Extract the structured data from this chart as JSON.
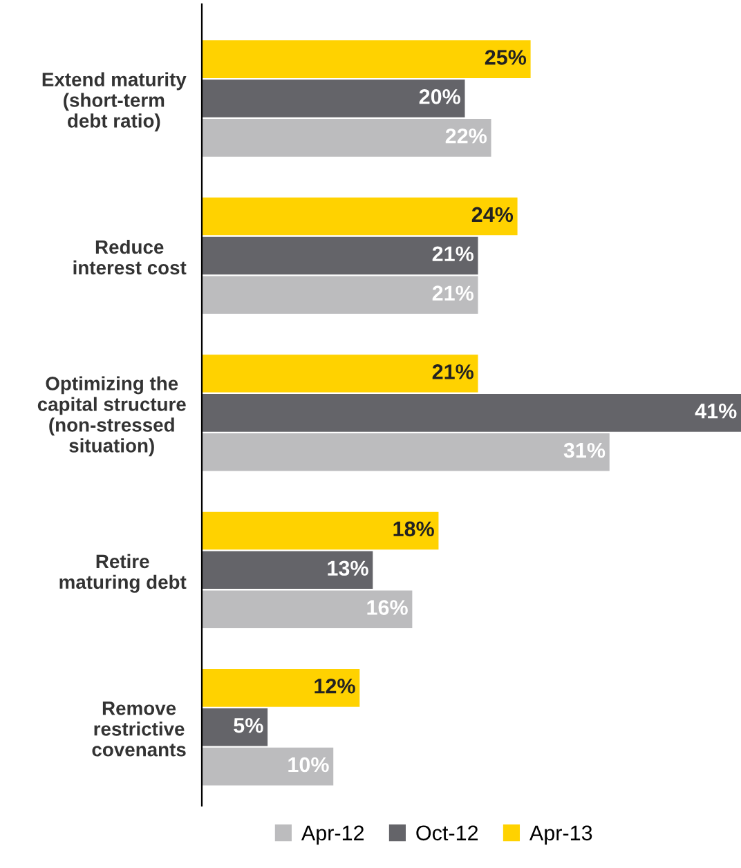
{
  "chart_data": {
    "type": "bar",
    "orientation": "horizontal",
    "categories": [
      "Extend maturity\n(short-term\ndebt ratio)",
      "Reduce\ninterest cost",
      "Optimizing the\ncapital structure\n(non-stressed\nsituation)",
      "Retire\nmaturing debt",
      "Remove\nrestrictive\ncovenants"
    ],
    "series": [
      {
        "name": "Apr-12",
        "color": "#bcbcbe",
        "values": [
          22,
          21,
          31,
          16,
          10
        ],
        "value_labels": [
          "22%",
          "21%",
          "31%",
          "16%",
          "10%"
        ]
      },
      {
        "name": "Oct-12",
        "color": "#646469",
        "values": [
          20,
          21,
          41,
          13,
          5
        ],
        "value_labels": [
          "20%",
          "21%",
          "41%",
          "13%",
          "5%"
        ]
      },
      {
        "name": "Apr-13",
        "color": "#ffd200",
        "values": [
          25,
          24,
          21,
          18,
          12
        ],
        "value_labels": [
          "25%",
          "24%",
          "21%",
          "18%",
          "12%"
        ]
      }
    ],
    "legend": "bottom",
    "grid": false,
    "tick_labels": "y"
  }
}
